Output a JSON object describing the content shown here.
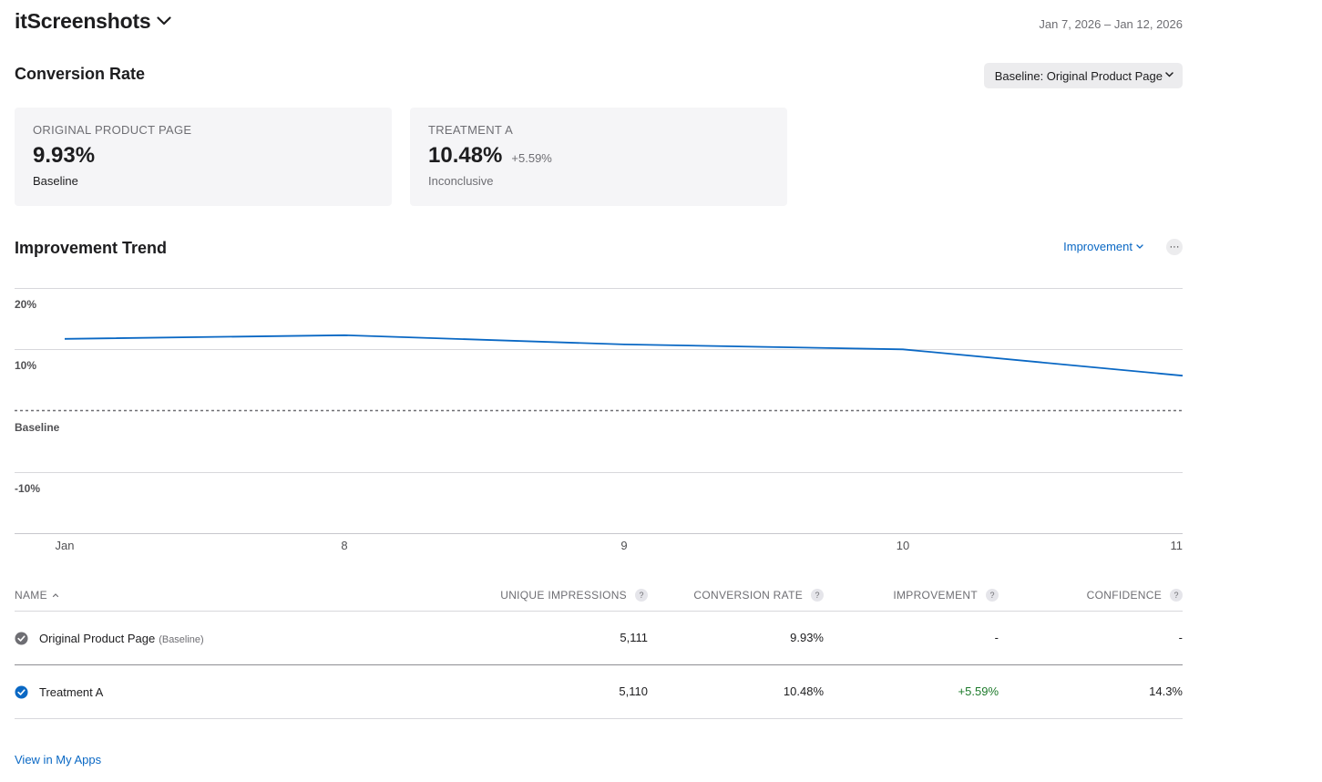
{
  "header": {
    "app_title": "itScreenshots",
    "date_range": "Jan 7, 2026 – Jan 12, 2026"
  },
  "conversion": {
    "title": "Conversion Rate",
    "baseline_select": "Baseline: Original Product Page",
    "cards": [
      {
        "label": "ORIGINAL PRODUCT PAGE",
        "value": "9.93%",
        "delta": "",
        "sub": "Baseline"
      },
      {
        "label": "TREATMENT A",
        "value": "10.48%",
        "delta": "+5.59%",
        "sub": "Inconclusive"
      }
    ]
  },
  "trend": {
    "title": "Improvement Trend",
    "metric_select": "Improvement",
    "more_label": "···"
  },
  "chart_data": {
    "type": "line",
    "title": "Improvement Trend",
    "xlabel": "",
    "ylabel": "Improvement",
    "x": [
      "Jan",
      "8",
      "9",
      "10",
      "11"
    ],
    "series": [
      {
        "name": "Treatment A",
        "values": [
          11.7,
          12.3,
          10.8,
          10.0,
          5.7
        ],
        "color": "#0a68c4"
      }
    ],
    "y_ticks": [
      {
        "value": 20,
        "label": "20%"
      },
      {
        "value": 10,
        "label": "10%"
      },
      {
        "value": 0,
        "label": "Baseline"
      },
      {
        "value": -10,
        "label": "-10%"
      }
    ],
    "ylim": [
      -20,
      20
    ],
    "baseline_value": 0,
    "grid": true
  },
  "table": {
    "headers": {
      "name": "NAME",
      "impressions": "UNIQUE IMPRESSIONS",
      "conversion": "CONVERSION RATE",
      "improvement": "IMPROVEMENT",
      "confidence": "CONFIDENCE"
    },
    "help_glyph": "?",
    "rows": [
      {
        "name": "Original Product Page",
        "tag": "(Baseline)",
        "impressions": "5,111",
        "conversion": "9.93%",
        "improvement": "-",
        "confidence": "-",
        "check_color": "#6e6e73"
      },
      {
        "name": "Treatment A",
        "tag": "",
        "impressions": "5,110",
        "conversion": "10.48%",
        "improvement": "+5.59%",
        "confidence": "14.3%",
        "check_color": "#0a68c4"
      }
    ]
  },
  "footer": {
    "link": "View in My Apps"
  },
  "colors": {
    "accent": "#0a68c4",
    "positive": "#1d7a2b",
    "muted": "#6e6e73"
  }
}
